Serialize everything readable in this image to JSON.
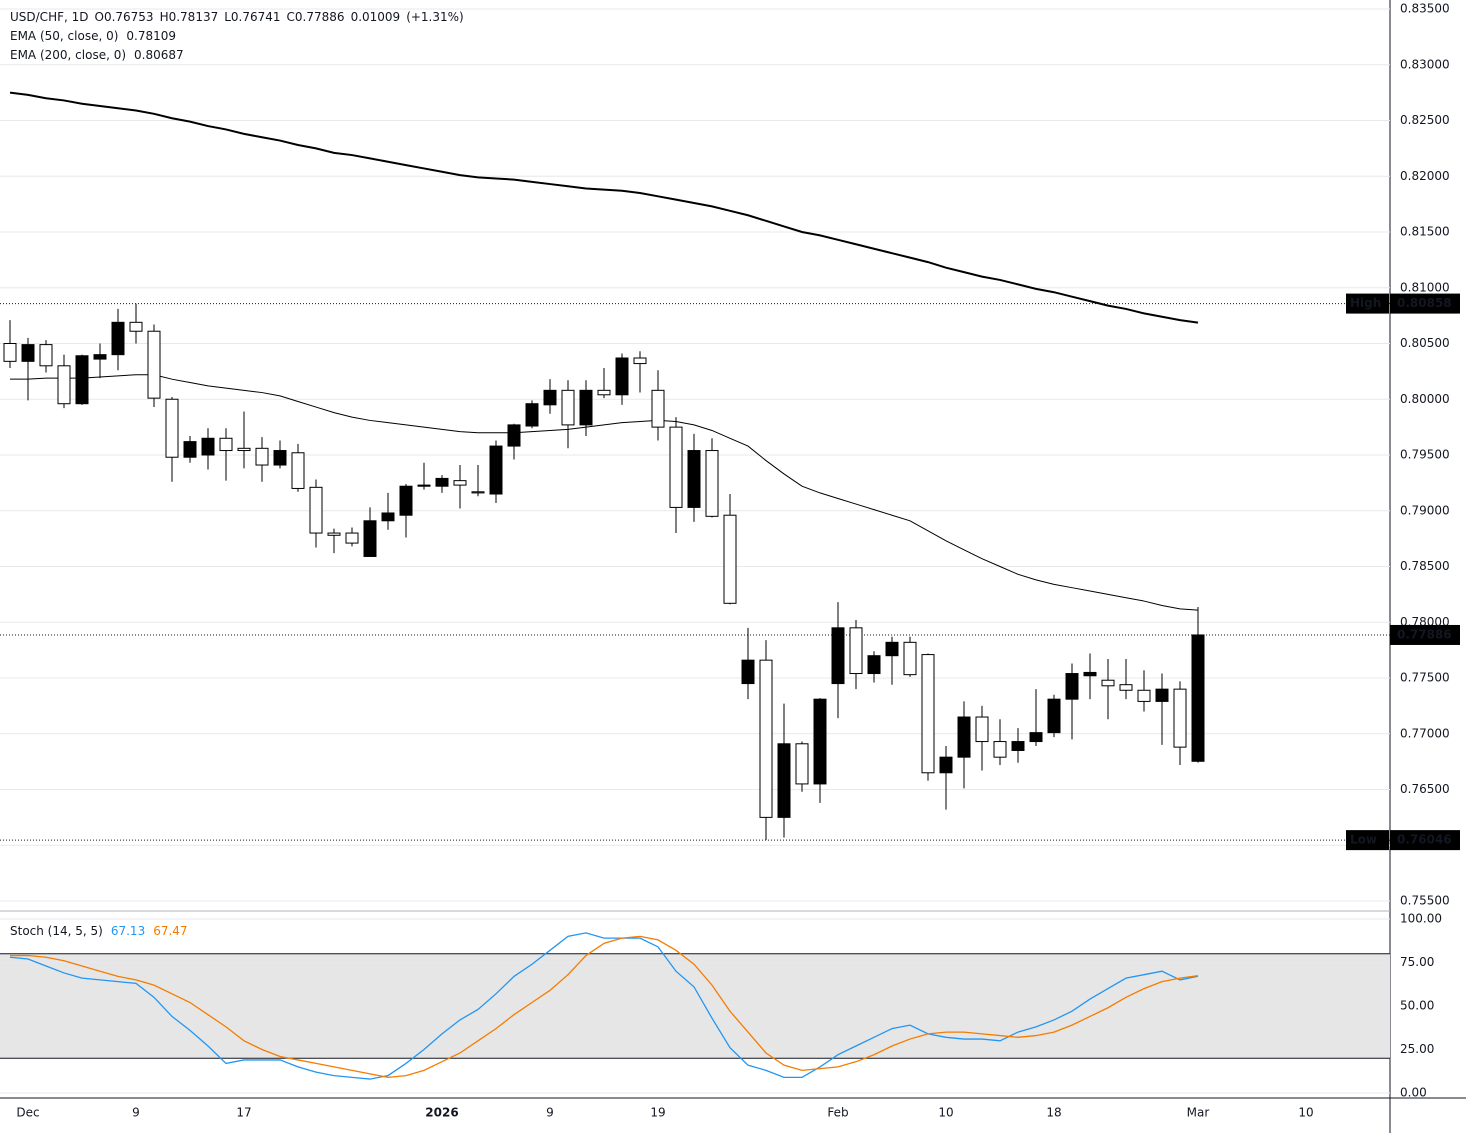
{
  "chart_data": [
    {
      "type": "candlestick",
      "legend_header": {
        "symbol": "USD/CHF, 1D",
        "open": "O0.76753",
        "high": "H0.78137",
        "low": "L0.76741",
        "close": "C0.77886",
        "change": "0.01009",
        "change_pct": "(+1.31%)"
      },
      "categories": [
        null,
        "Dec",
        null,
        null,
        null,
        null,
        null,
        "9",
        null,
        null,
        null,
        null,
        null,
        "17",
        null,
        null,
        null,
        null,
        null,
        null,
        null,
        null,
        null,
        null,
        "2026",
        null,
        null,
        null,
        null,
        null,
        "9",
        null,
        null,
        null,
        null,
        null,
        "19",
        null,
        null,
        null,
        null,
        null,
        null,
        null,
        null,
        null,
        "Feb",
        null,
        null,
        null,
        null,
        null,
        "10",
        null,
        null,
        null,
        null,
        null,
        "18",
        null,
        null,
        null,
        null,
        null,
        null,
        null,
        "Mar",
        null,
        null,
        null,
        null,
        null,
        "10"
      ],
      "open": [
        0.805,
        0.8034,
        0.8049,
        0.803,
        0.7996,
        0.8036,
        0.804,
        0.8069,
        0.8061,
        0.8,
        0.7948,
        0.795,
        0.7965,
        0.7956,
        0.7956,
        0.7941,
        0.7952,
        0.7921,
        0.788,
        0.788,
        0.7859,
        0.7891,
        0.7896,
        0.7922,
        0.7922,
        0.7927,
        0.7917,
        0.7915,
        0.7958,
        0.7976,
        0.7995,
        0.8008,
        0.7977,
        0.8008,
        0.8004,
        0.8037,
        0.8008,
        0.7975,
        0.7903,
        0.7954,
        0.7896,
        0.7745,
        0.7766,
        0.7625,
        0.7691,
        0.7655,
        0.7745,
        0.7795,
        0.7754,
        0.777,
        0.7782,
        0.7771,
        0.7665,
        0.7679,
        0.7715,
        0.7693,
        0.7685,
        0.7693,
        0.7701,
        0.7731,
        0.7752,
        0.7748,
        0.7744,
        0.7739,
        0.7729,
        0.774,
        0.76753,
        null,
        null,
        null,
        null,
        null,
        null
      ],
      "high": [
        0.8071,
        0.8055,
        0.8053,
        0.804,
        0.804,
        0.805,
        0.8081,
        0.80858,
        0.8067,
        0.8002,
        0.7967,
        0.7974,
        0.7974,
        0.7989,
        0.7966,
        0.7963,
        0.796,
        0.7928,
        0.7884,
        0.7885,
        0.7903,
        0.7916,
        0.7924,
        0.7943,
        0.7932,
        0.7941,
        0.7941,
        0.7963,
        0.7978,
        0.7999,
        0.8018,
        0.8017,
        0.8017,
        0.8028,
        0.8041,
        0.8043,
        0.8026,
        0.7984,
        0.7969,
        0.7965,
        0.7915,
        0.7795,
        0.7784,
        0.7727,
        0.7693,
        0.7732,
        0.7818,
        0.7802,
        0.7774,
        0.7787,
        0.7787,
        0.7772,
        0.7689,
        0.7729,
        0.7725,
        0.7713,
        0.7705,
        0.774,
        0.7735,
        0.7763,
        0.7772,
        0.7767,
        0.7767,
        0.7757,
        0.7754,
        0.7747,
        0.78137,
        null,
        null,
        null,
        null,
        null,
        null
      ],
      "low": [
        0.8028,
        0.7999,
        0.8024,
        0.7992,
        0.7995,
        0.8019,
        0.8026,
        0.805,
        0.7993,
        0.7926,
        0.7943,
        0.7937,
        0.7927,
        0.7938,
        0.7926,
        0.7938,
        0.7917,
        0.7867,
        0.7862,
        0.7868,
        0.7859,
        0.7883,
        0.7876,
        0.7919,
        0.7916,
        0.7902,
        0.7913,
        0.7907,
        0.7946,
        0.7974,
        0.7987,
        0.7956,
        0.7967,
        0.8001,
        0.7995,
        0.8006,
        0.7963,
        0.788,
        0.789,
        0.7894,
        0.7816,
        0.7731,
        0.76046,
        0.7607,
        0.7648,
        0.7638,
        0.7714,
        0.774,
        0.7746,
        0.7744,
        0.7751,
        0.7658,
        0.7632,
        0.7651,
        0.7667,
        0.7672,
        0.7674,
        0.7689,
        0.7697,
        0.7695,
        0.7731,
        0.7713,
        0.7731,
        0.772,
        0.769,
        0.7672,
        0.76741,
        null,
        null,
        null,
        null,
        null,
        null
      ],
      "close": [
        0.8034,
        0.8049,
        0.803,
        0.7996,
        0.8039,
        0.804,
        0.8069,
        0.8061,
        0.8001,
        0.7948,
        0.7962,
        0.7965,
        0.7954,
        0.7954,
        0.7941,
        0.7954,
        0.792,
        0.788,
        0.7878,
        0.7871,
        0.7891,
        0.7898,
        0.7922,
        0.7923,
        0.7929,
        0.7923,
        0.7916,
        0.7958,
        0.7977,
        0.7996,
        0.8008,
        0.7977,
        0.8008,
        0.8004,
        0.8037,
        0.8032,
        0.7975,
        0.7903,
        0.7954,
        0.7895,
        0.7817,
        0.7766,
        0.7625,
        0.7691,
        0.7655,
        0.7731,
        0.7795,
        0.7754,
        0.777,
        0.7782,
        0.7753,
        0.7665,
        0.7679,
        0.7715,
        0.7693,
        0.7679,
        0.7693,
        0.7701,
        0.7731,
        0.7754,
        0.7755,
        0.7743,
        0.7739,
        0.7729,
        0.774,
        0.7688,
        0.77886,
        null,
        null,
        null,
        null,
        null,
        null
      ],
      "up_color": "#000000",
      "down_color": "#ffffff",
      "series": [
        {
          "name": "EMA (50, close, 0)",
          "color": "#000000",
          "line_width": 1,
          "values": [
            0.8018,
            0.8018,
            0.8019,
            0.8019,
            0.8019,
            0.802,
            0.8021,
            0.8022,
            0.8022,
            0.8018,
            0.8015,
            0.8012,
            0.801,
            0.8008,
            0.8006,
            0.8003,
            0.7998,
            0.7993,
            0.7988,
            0.7984,
            0.7981,
            0.7979,
            0.7977,
            0.7975,
            0.7973,
            0.7971,
            0.797,
            0.797,
            0.797,
            0.7971,
            0.7972,
            0.7973,
            0.7975,
            0.7977,
            0.7979,
            0.798,
            0.7981,
            0.798,
            0.7977,
            0.7972,
            0.7965,
            0.7958,
            0.7945,
            0.7933,
            0.7922,
            0.7916,
            0.7911,
            0.7906,
            0.7901,
            0.7896,
            0.7891,
            0.7882,
            0.7873,
            0.7865,
            0.7857,
            0.785,
            0.7843,
            0.7838,
            0.7834,
            0.7831,
            0.7828,
            0.7825,
            0.7822,
            0.7819,
            0.7815,
            0.7812,
            0.78109,
            null,
            null,
            null,
            null,
            null,
            null
          ]
        },
        {
          "name": "EMA (200, close, 0)",
          "color": "#000000",
          "line_width": 2,
          "values": [
            0.8275,
            0.8273,
            0.827,
            0.8268,
            0.8265,
            0.8263,
            0.8261,
            0.8259,
            0.8256,
            0.8252,
            0.8249,
            0.8245,
            0.8242,
            0.8238,
            0.8235,
            0.8232,
            0.8228,
            0.8225,
            0.8221,
            0.8219,
            0.8216,
            0.8213,
            0.821,
            0.8207,
            0.8204,
            0.8201,
            0.8199,
            0.8198,
            0.8197,
            0.8195,
            0.8193,
            0.8191,
            0.8189,
            0.8188,
            0.8187,
            0.8185,
            0.8182,
            0.8179,
            0.8176,
            0.8173,
            0.8169,
            0.8165,
            0.816,
            0.8155,
            0.815,
            0.8147,
            0.8143,
            0.8139,
            0.8135,
            0.8131,
            0.8127,
            0.8123,
            0.8118,
            0.8114,
            0.811,
            0.8107,
            0.8103,
            0.8099,
            0.8096,
            0.8092,
            0.8088,
            0.8084,
            0.8081,
            0.8077,
            0.8074,
            0.8071,
            0.80687,
            null,
            null,
            null,
            null,
            null,
            null
          ]
        }
      ],
      "price_tags": [
        {
          "label": "High",
          "value": 0.80858
        },
        {
          "label": "Low",
          "value": 0.76046
        }
      ],
      "ylim": [
        0.755,
        0.835
      ],
      "yticks": [
        {
          "value": 0.755,
          "label": "0.75500"
        },
        {
          "value": 0.76,
          "label": "0.76000"
        },
        {
          "value": 0.765,
          "label": "0.76500"
        },
        {
          "value": 0.77,
          "label": "0.77000"
        },
        {
          "value": 0.775,
          "label": "0.77500"
        },
        {
          "value": 0.78,
          "label": "0.78000"
        },
        {
          "value": 0.785,
          "label": "0.78500"
        },
        {
          "value": 0.79,
          "label": "0.79000"
        },
        {
          "value": 0.795,
          "label": "0.79500"
        },
        {
          "value": 0.8,
          "label": "0.80000"
        },
        {
          "value": 0.805,
          "label": "0.80500"
        },
        {
          "value": 0.81,
          "label": "0.81000"
        },
        {
          "value": 0.815,
          "label": "0.81500"
        },
        {
          "value": 0.82,
          "label": "0.82000"
        },
        {
          "value": 0.825,
          "label": "0.82500"
        },
        {
          "value": 0.83,
          "label": "0.83000"
        },
        {
          "value": 0.835,
          "label": "0.83500"
        }
      ],
      "grid": true
    },
    {
      "type": "line",
      "title": "Stoch (14, 5, 5)",
      "series": [
        {
          "color": "#2196f3",
          "values": [
            78,
            77,
            73,
            69,
            66,
            65,
            64,
            63,
            55,
            44,
            36,
            27,
            17,
            19,
            19,
            19,
            15,
            12,
            10,
            9,
            8,
            10,
            17,
            25,
            34,
            42,
            48,
            57,
            67,
            74,
            82,
            90,
            92,
            89,
            89,
            89,
            84,
            70,
            61,
            43,
            26,
            16,
            13,
            9,
            9,
            15,
            22,
            27,
            32,
            37,
            39,
            34,
            32,
            31,
            31,
            30,
            35,
            38,
            42,
            47,
            54,
            60,
            66,
            68,
            70,
            65,
            67.13,
            null,
            null,
            null,
            null,
            null,
            null
          ]
        },
        {
          "color": "#f57c00",
          "values": [
            79,
            79,
            78,
            76,
            73,
            70,
            67,
            65,
            62,
            57,
            52,
            45,
            38,
            30,
            25,
            21,
            19,
            17,
            15,
            13,
            11,
            9,
            10,
            13,
            18,
            23,
            30,
            37,
            45,
            52,
            59,
            68,
            79,
            86,
            89,
            90,
            88,
            82,
            74,
            62,
            47,
            35,
            23,
            16,
            13,
            14,
            15,
            18,
            22,
            27,
            31,
            34,
            35,
            35,
            34,
            33,
            32,
            33,
            35,
            39,
            44,
            49,
            55,
            60,
            64,
            66,
            67.47,
            null,
            null,
            null,
            null,
            null,
            null
          ]
        }
      ],
      "bands": [
        20,
        80
      ],
      "band_color": "#e6e6e6",
      "ylim": [
        0,
        100
      ],
      "yticks": [
        {
          "value": 0,
          "label": "0.00"
        },
        {
          "value": 25,
          "label": "25.00"
        },
        {
          "value": 50,
          "label": "50.00"
        },
        {
          "value": 75,
          "label": "75.00"
        },
        {
          "value": 100,
          "label": "100.00"
        }
      ],
      "grid": true
    }
  ]
}
